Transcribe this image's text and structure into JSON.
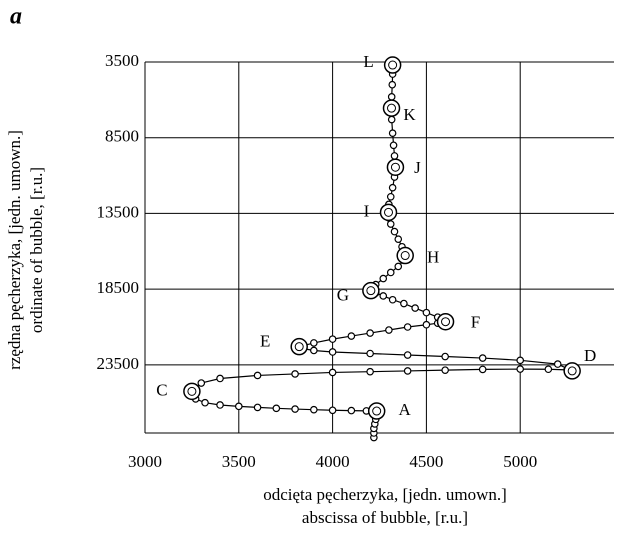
{
  "chart_data": {
    "type": "line",
    "panel_label": "a",
    "xlabel": [
      "odcięta pęcherzyka, [jedn. umown.]",
      "abscissa of bubble, [r.u.]"
    ],
    "ylabel": [
      "rzędna pęcherzyka, [jedn. umown.]",
      "ordinate of bubble, [r.u.]"
    ],
    "xlim": [
      3000,
      5500
    ],
    "ylim": [
      28000,
      3500
    ],
    "xticks": [
      3000,
      3500,
      4000,
      4500,
      5000
    ],
    "yticks": [
      3500,
      8500,
      13500,
      18500,
      23500
    ],
    "grid": true,
    "series": [
      {
        "color": "#000000",
        "x": [
          4220,
          4220,
          4220,
          4225,
          4230,
          4235,
          4235,
          4180,
          4100,
          4000,
          3900,
          3800,
          3700,
          3600,
          3500,
          3400,
          3320,
          3270,
          3250,
          3300,
          3400,
          3600,
          3800,
          4000,
          4200,
          4400,
          4600,
          4800,
          5000,
          5150,
          5250,
          5277,
          5200,
          5000,
          4800,
          4600,
          4400,
          4200,
          4000,
          3900,
          3840,
          3822,
          3900,
          4000,
          4100,
          4200,
          4300,
          4400,
          4500,
          4560,
          4602,
          4560,
          4500,
          4440,
          4380,
          4320,
          4270,
          4230,
          4204,
          4230,
          4270,
          4310,
          4350,
          4380,
          4387,
          4370,
          4350,
          4330,
          4310,
          4300,
          4298,
          4300,
          4310,
          4320,
          4330,
          4335,
          4330,
          4325,
          4320,
          4315,
          4314,
          4315,
          4318,
          4320,
          4320
        ],
        "values": [
          28300,
          28000,
          27700,
          27400,
          27100,
          26800,
          26550,
          26540,
          26520,
          26500,
          26460,
          26420,
          26370,
          26310,
          26240,
          26150,
          26000,
          25750,
          25250,
          24700,
          24400,
          24200,
          24100,
          24000,
          23950,
          23900,
          23850,
          23800,
          23780,
          23790,
          23830,
          23900,
          23450,
          23200,
          23050,
          22950,
          22850,
          22750,
          22650,
          22550,
          22420,
          22300,
          22050,
          21800,
          21600,
          21400,
          21200,
          21000,
          20850,
          20750,
          20650,
          20350,
          20050,
          19750,
          19450,
          19200,
          18950,
          18750,
          18600,
          18200,
          17800,
          17400,
          17000,
          16600,
          16280,
          15700,
          15200,
          14700,
          14200,
          13800,
          13430,
          12900,
          12400,
          11800,
          11100,
          10450,
          9700,
          9000,
          8200,
          7300,
          6550,
          5800,
          5000,
          4300,
          3700
        ]
      }
    ],
    "annotations": [
      {
        "text": "L",
        "x": 4320,
        "y": 3700
      },
      {
        "text": "K",
        "x": 4314,
        "y": 6550
      },
      {
        "text": "J",
        "x": 4335,
        "y": 10450
      },
      {
        "text": "I",
        "x": 4298,
        "y": 13430
      },
      {
        "text": "H",
        "x": 4387,
        "y": 16280
      },
      {
        "text": "G",
        "x": 4204,
        "y": 18600
      },
      {
        "text": "F",
        "x": 4602,
        "y": 20650
      },
      {
        "text": "E",
        "x": 3822,
        "y": 22300
      },
      {
        "text": "D",
        "x": 5277,
        "y": 23900
      },
      {
        "text": "C",
        "x": 3250,
        "y": 25250
      },
      {
        "text": "A",
        "x": 4235,
        "y": 26550
      }
    ]
  }
}
